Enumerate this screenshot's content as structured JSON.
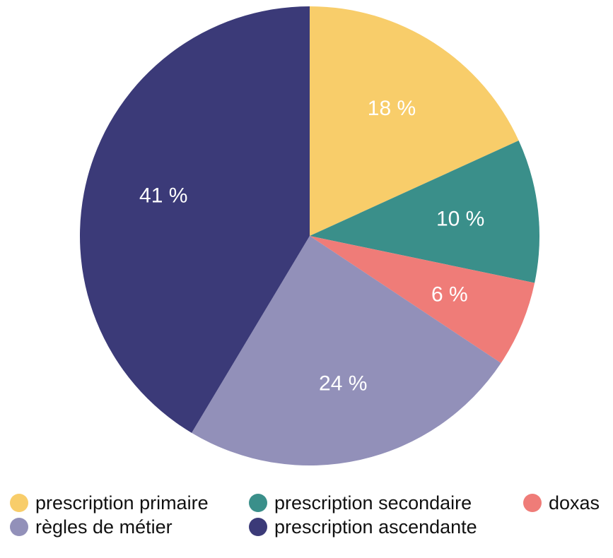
{
  "chart_data": {
    "type": "pie",
    "start_angle_deg": 0,
    "direction": "clockwise",
    "slices": [
      {
        "name": "prescription primaire",
        "value": 18,
        "label": "18 %",
        "color": "#f8cd6a"
      },
      {
        "name": "prescription secondaire",
        "value": 10,
        "label": "10 %",
        "color": "#3a8f8a"
      },
      {
        "name": "doxas",
        "value": 6,
        "label": "6 %",
        "color": "#ef7c78"
      },
      {
        "name": "règles de métier",
        "value": 24,
        "label": "24 %",
        "color": "#9290b9"
      },
      {
        "name": "prescription ascendante",
        "value": 41,
        "label": "41 %",
        "color": "#3b3a78"
      }
    ],
    "legend": {
      "placement": "bottom",
      "entries": [
        {
          "label": "prescription primaire",
          "color": "#f8cd6a"
        },
        {
          "label": "prescription secondaire",
          "color": "#3a8f8a"
        },
        {
          "label": "doxas",
          "color": "#ef7c78"
        },
        {
          "label": "règles de métier",
          "color": "#9290b9"
        },
        {
          "label": "prescription ascendante",
          "color": "#3b3a78"
        }
      ]
    }
  }
}
